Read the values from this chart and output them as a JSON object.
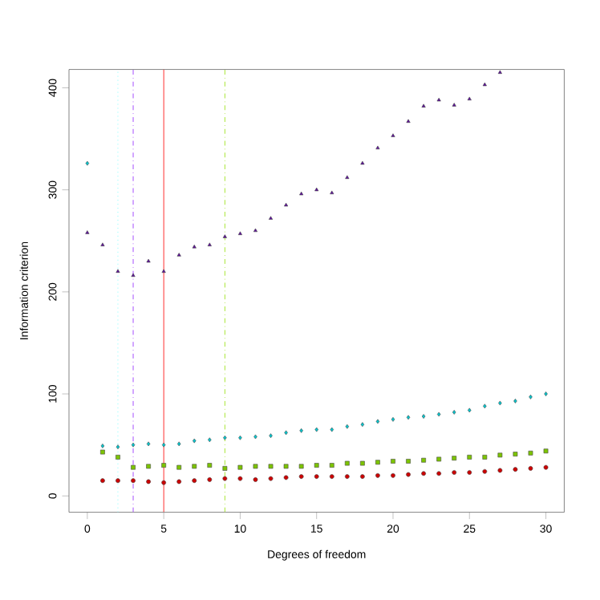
{
  "chart_data": {
    "type": "scatter",
    "xlabel": "Degrees of freedom",
    "ylabel": "Information criterion",
    "x": [
      0,
      1,
      2,
      3,
      4,
      5,
      6,
      7,
      8,
      9,
      10,
      11,
      12,
      13,
      14,
      15,
      16,
      17,
      18,
      19,
      20,
      21,
      22,
      23,
      24,
      25,
      26,
      27,
      28,
      29,
      30
    ],
    "xlim": [
      -1.2,
      31.2
    ],
    "ylim": [
      -16,
      418
    ],
    "xticks": [
      0,
      5,
      10,
      15,
      20,
      25,
      30
    ],
    "yticks": [
      0,
      100,
      200,
      300,
      400
    ],
    "series": [
      {
        "color": "#5b0d9a",
        "marker": "triangle",
        "values": [
          258,
          246,
          220,
          216,
          230,
          220,
          236,
          244,
          246,
          254,
          257,
          260,
          272,
          285,
          296,
          300,
          297,
          312,
          326,
          341,
          353,
          367,
          382,
          388,
          383,
          389,
          403,
          415,
          null,
          null,
          null
        ]
      },
      {
        "color": "#00c5cd",
        "marker": "diamond",
        "values": [
          326,
          49,
          48,
          50,
          51,
          50,
          51,
          54,
          55,
          57,
          57,
          58,
          59,
          62,
          64,
          65,
          65,
          68,
          70,
          73,
          75,
          77,
          78,
          80,
          82,
          84,
          88,
          91,
          93,
          97,
          100
        ]
      },
      {
        "color": "#7cc400",
        "marker": "square",
        "values": [
          null,
          43,
          38,
          28,
          29,
          30,
          28,
          29,
          30,
          27,
          28,
          29,
          29,
          29,
          29,
          30,
          30,
          32,
          32,
          33,
          34,
          34,
          35,
          36,
          37,
          38,
          38,
          40,
          41,
          42,
          44
        ]
      },
      {
        "color": "#cc0000",
        "marker": "circle",
        "values": [
          null,
          15,
          15,
          15,
          14,
          13,
          14,
          15,
          16,
          17,
          17,
          16,
          17,
          18,
          19,
          19,
          19,
          19,
          19,
          20,
          20,
          21,
          22,
          22,
          23,
          23,
          24,
          25,
          26,
          27,
          28
        ]
      }
    ],
    "ref_lines": [
      {
        "axis": "x",
        "value": 2,
        "color": "#7fffff",
        "line_style": "dotted"
      },
      {
        "axis": "x",
        "value": 3,
        "color": "#a64dff",
        "line_style": "dashed"
      },
      {
        "axis": "x",
        "value": 5,
        "color": "#ff3030",
        "line_style": "solid"
      },
      {
        "axis": "x",
        "value": 9,
        "color": "#a8e635",
        "line_style": "dashed"
      }
    ]
  }
}
